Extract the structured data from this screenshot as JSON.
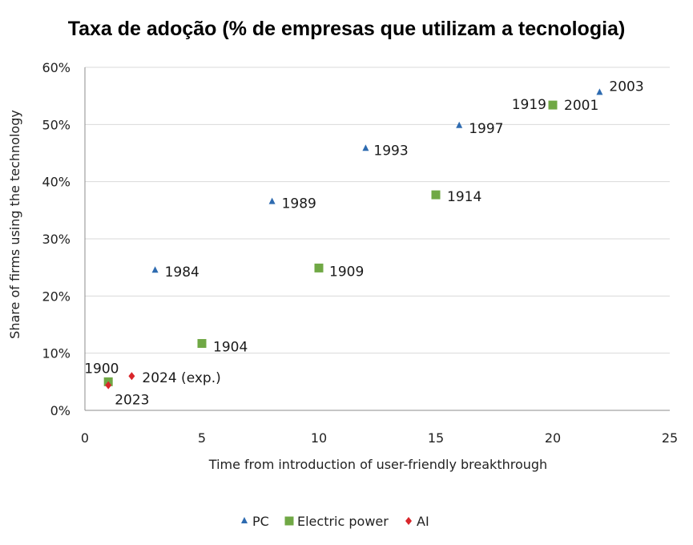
{
  "chart_data": {
    "type": "scatter",
    "title": "Taxa de adoção (% de empresas que utilizam a tecnologia)",
    "xlabel": "Time from introduction of user-friendly breakthrough",
    "ylabel": "Share of firms using the technology",
    "xlim": [
      0,
      25
    ],
    "ylim": [
      0,
      60
    ],
    "x_ticks": [
      0,
      5,
      10,
      15,
      20,
      25
    ],
    "y_ticks": [
      0,
      10,
      20,
      30,
      40,
      50,
      60
    ],
    "y_tick_labels": [
      "0%",
      "10%",
      "20%",
      "30%",
      "40%",
      "50%",
      "60%"
    ],
    "grid": true,
    "legend": "bottom",
    "series": [
      {
        "name": "PC",
        "marker": "triangle",
        "color": "#2e6bb0",
        "points": [
          {
            "x": 3,
            "y": 24.5,
            "label": "1984"
          },
          {
            "x": 8,
            "y": 36.5,
            "label": "1989"
          },
          {
            "x": 12,
            "y": 45.8,
            "label": "1993"
          },
          {
            "x": 16,
            "y": 49.8,
            "label": "1997"
          },
          {
            "x": 22,
            "y": 55.6,
            "label": "2003"
          }
        ]
      },
      {
        "name": "Electric power",
        "marker": "square",
        "color": "#70a845",
        "points": [
          {
            "x": 1,
            "y": 5,
            "label": "1900"
          },
          {
            "x": 5,
            "y": 11.7,
            "label": "1904"
          },
          {
            "x": 10,
            "y": 24.9,
            "label": "1909"
          },
          {
            "x": 15,
            "y": 37.7,
            "label": "1914"
          },
          {
            "x": 20,
            "y": 53.4,
            "label": "1919"
          }
        ]
      },
      {
        "name": "AI",
        "marker": "diamond",
        "color": "#d9262b",
        "points": [
          {
            "x": 1,
            "y": 4.4,
            "label": "2023"
          },
          {
            "x": 2,
            "y": 6,
            "label": "2024 (exp.)"
          }
        ]
      }
    ],
    "annotations": [
      {
        "x": 20,
        "y": 53.4,
        "label": "2001"
      }
    ]
  }
}
